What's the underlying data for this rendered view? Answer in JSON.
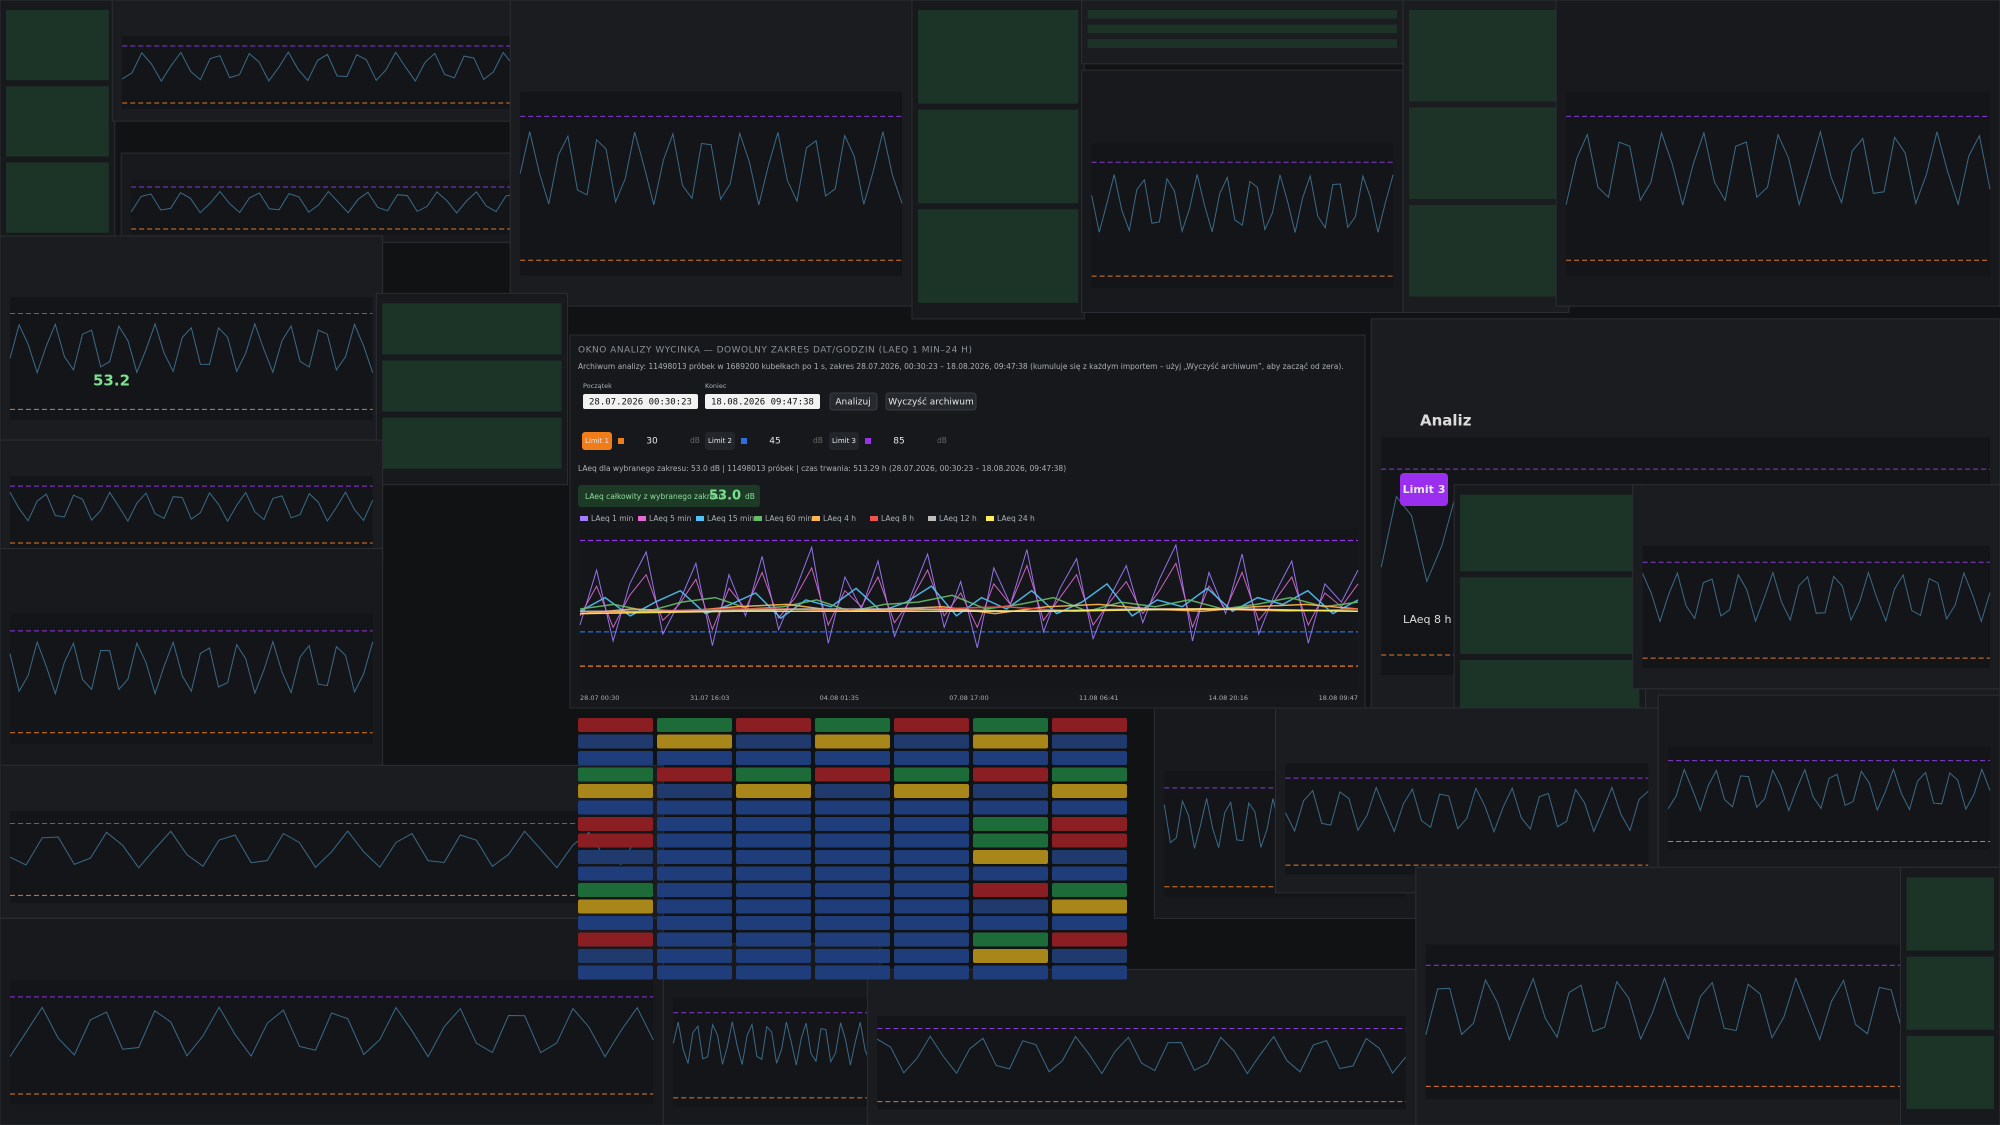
{
  "panel": {
    "title": "OKNO ANALIZY WYCINKA — DOWOLNY ZAKRES DAT/GODZIN (LAEQ 1 MIN–24 H)",
    "archive_note": "Archiwum analizy: 11498013 próbek w 1689200 kubełkach po 1 s, zakres 28.07.2026, 00:30:23 – 18.08.2026, 09:47:38 (kumuluje się z każdym importem – użyj „Wyczyść archiwum”, aby zacząć od zera).",
    "start_label": "Początek",
    "start_value": "28.07.2026 00:30:23",
    "end_label": "Koniec",
    "end_value": "18.08.2026 09:47:38",
    "analyze_button": "Analizuj",
    "clear_button": "Wyczyść archiwum",
    "limits": [
      {
        "label": "Limit 1",
        "value": 30,
        "color": "#f07c1a"
      },
      {
        "label": "Limit 2",
        "value": 45,
        "color": "#2a6fe0"
      },
      {
        "label": "Limit 3",
        "value": 85,
        "color": "#9b2ff0"
      }
    ],
    "unit": "dB",
    "summary": "LAeq dla wybranego zakresu: 53.0 dB | 11498013 próbek | czas trwania: 513.29 h (28.07.2026, 00:30:23 – 18.08.2026, 09:47:38)",
    "total_label": "LAeq całkowity z wybranego zakresu",
    "total_value": "53.0"
  },
  "chart_data": {
    "type": "line",
    "x_labels": [
      "28.07 00:30",
      "31.07 16:03",
      "04.08 01:35",
      "07.08 17:00",
      "11.08 06:41",
      "14.08 20:16",
      "18.08 09:47"
    ],
    "ylim": [
      20,
      90
    ],
    "series": [
      {
        "name": "LAeq 1 min",
        "color": "#a07cff",
        "values": [
          48,
          72,
          41,
          66,
          80,
          44,
          58,
          75,
          39,
          70,
          52,
          78,
          46,
          63,
          82,
          40,
          69,
          55,
          76,
          43,
          61,
          79,
          47,
          67,
          38,
          73,
          57,
          81,
          45,
          64,
          77,
          42,
          60,
          74,
          49,
          68,
          83,
          41,
          71,
          53,
          79,
          44,
          62,
          76,
          40,
          66,
          58,
          72
        ]
      },
      {
        "name": "LAeq 5 min",
        "color": "#e26bd2",
        "values": [
          52,
          65,
          47,
          61,
          70,
          50,
          57,
          68,
          46,
          64,
          55,
          71,
          51,
          60,
          73,
          48,
          63,
          56,
          69,
          49,
          59,
          72,
          52,
          62,
          47,
          66,
          57,
          74,
          50,
          60,
          70,
          48,
          58,
          67,
          53,
          63,
          75,
          47,
          65,
          55,
          71,
          50,
          59,
          69,
          48,
          62,
          56,
          66
        ]
      },
      {
        "name": "LAeq 15 min",
        "color": "#4fc3f7",
        "values": [
          54,
          60,
          52,
          58,
          63,
          53,
          57,
          62,
          51,
          59,
          56,
          64,
          54,
          58,
          65,
          52,
          60,
          55,
          63,
          53,
          58,
          66,
          52,
          59,
          56,
          64,
          54,
          60,
          57,
          63,
          53,
          59
        ]
      },
      {
        "name": "LAeq 60 min",
        "color": "#66bb6a",
        "values": [
          55,
          57,
          54,
          58,
          60,
          55,
          56,
          59,
          54,
          57,
          58,
          61,
          55,
          57,
          60,
          54,
          58,
          56,
          59,
          55,
          57,
          60,
          56,
          58
        ]
      },
      {
        "name": "LAeq 4 h",
        "color": "#ffb74d",
        "values": [
          53,
          55,
          54,
          56,
          57,
          54,
          55,
          56,
          53,
          56,
          57,
          55,
          54,
          56,
          57,
          55
        ]
      },
      {
        "name": "LAeq 8 h",
        "color": "#ef5350",
        "values": [
          53,
          54,
          55,
          55,
          54,
          55,
          56,
          54,
          55,
          55,
          54,
          55
        ]
      },
      {
        "name": "LAeq 12 h",
        "color": "#bdbdbd",
        "values": [
          54,
          54,
          55,
          55,
          54,
          55,
          55,
          54
        ]
      },
      {
        "name": "LAeq 24 h",
        "color": "#ffee58",
        "values": [
          53,
          54,
          54,
          54,
          55,
          54
        ]
      }
    ]
  },
  "background": {
    "left_total": "53.2",
    "right_button": "Limit 3",
    "right_analyze": "Analiz",
    "right_legend": "LAeq 8 h"
  }
}
